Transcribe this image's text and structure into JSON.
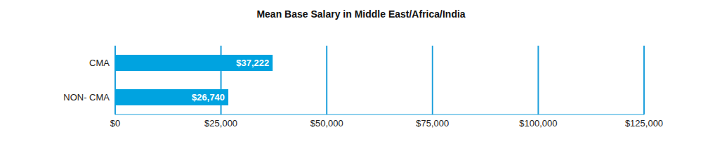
{
  "chart_data": {
    "type": "bar",
    "title": "Mean Base Salary in Middle East/Africa/India",
    "orientation": "horizontal",
    "categories": [
      "CMA",
      "NON- CMA"
    ],
    "values": [
      37222,
      26740
    ],
    "value_labels": [
      "$37,222",
      "$26,740"
    ],
    "data_labels": true,
    "color": "#00a3e0",
    "xlim": [
      0,
      125000
    ],
    "xticks": [
      {
        "value": 0,
        "label": "$0"
      },
      {
        "value": 25000,
        "label": "$25,000"
      },
      {
        "value": 50000,
        "label": "$50,000"
      },
      {
        "value": 75000,
        "label": "$75,000"
      },
      {
        "value": 100000,
        "label": "$100,000"
      },
      {
        "value": 125000,
        "label": "$125,000"
      }
    ],
    "grid": true
  }
}
